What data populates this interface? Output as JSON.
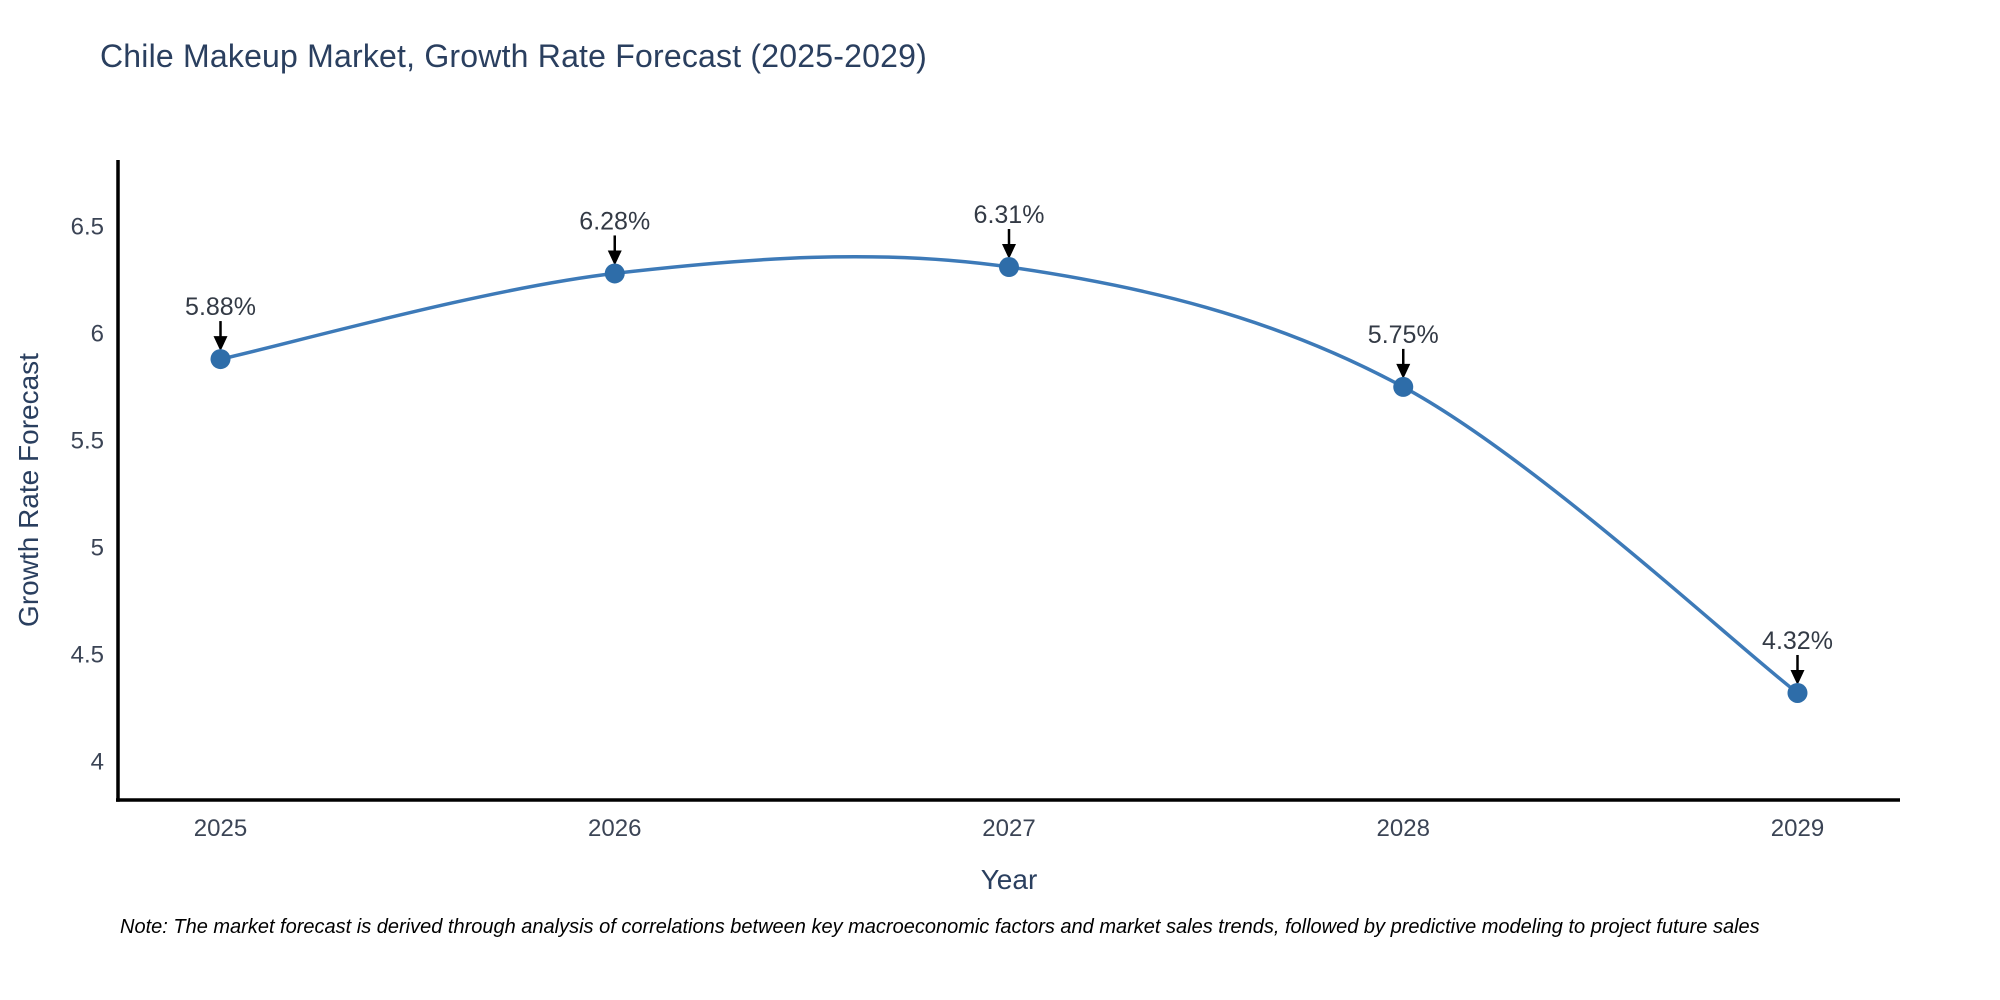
{
  "chart_data": {
    "type": "line",
    "title": "Chile Makeup Market, Growth Rate Forecast (2025-2029)",
    "xlabel": "Year",
    "ylabel": "Growth Rate Forecast",
    "x": [
      2025,
      2026,
      2027,
      2028,
      2029
    ],
    "values": [
      5.88,
      6.28,
      6.31,
      5.75,
      4.32
    ],
    "point_labels": [
      "5.88%",
      "6.28%",
      "6.31%",
      "5.75%",
      "4.32%"
    ],
    "xtick_labels": [
      "2025",
      "2026",
      "2027",
      "2028",
      "2029"
    ],
    "ytick_values": [
      4,
      4.5,
      5,
      5.5,
      6,
      6.5
    ],
    "ytick_labels": [
      "4",
      "4.5",
      "5",
      "5.5",
      "6",
      "6.5"
    ],
    "xlim": [
      2024.74,
      2029.26
    ],
    "ylim": [
      3.82,
      6.81
    ],
    "grid": false,
    "legend_position": "none",
    "line_shape": "spline",
    "colors": {
      "line": "#3d7ab8",
      "marker": "#2e6da9",
      "axis_line": "#000000",
      "title_text": "#2a3f5f",
      "axis_title_text": "#2a3f5f",
      "tick_text": "#3b4455",
      "annotation_text": "#333a45",
      "annotation_arrow": "#000000",
      "note_text": "#000000"
    }
  },
  "footer": {
    "note": "Note: The market forecast is derived through analysis of correlations between key macroeconomic factors and market sales trends, followed by predictive modeling to project future sales"
  }
}
